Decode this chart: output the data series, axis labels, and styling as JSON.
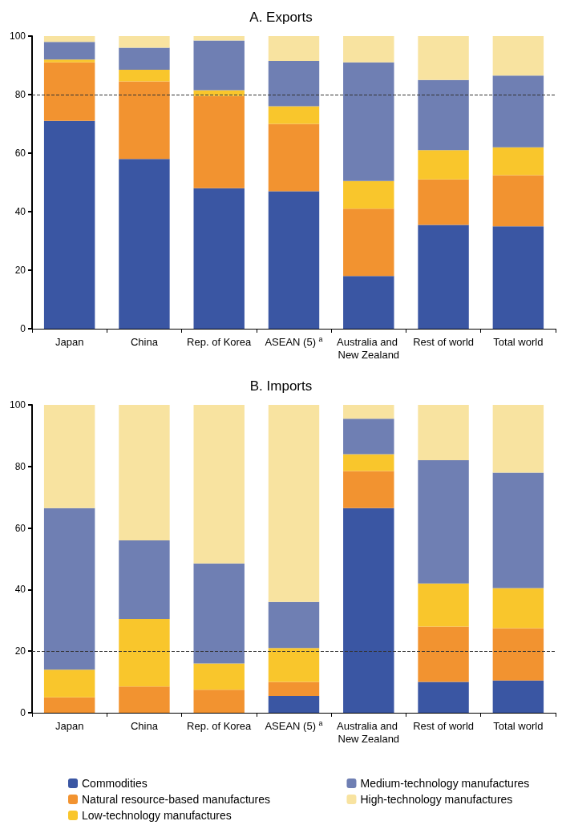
{
  "chart_data": [
    {
      "type": "bar",
      "title": "A. Exports",
      "stacked": true,
      "legend": false,
      "grid": false,
      "categories": [
        "Japan",
        "China",
        "Rep. of Korea",
        "ASEAN (5) $^{a}$",
        "Australia and New Zealand",
        "Rest of world",
        "Total world"
      ],
      "series": [
        {
          "color": "#3a56a3",
          "values": [
            71,
            58,
            48,
            47,
            18,
            35.5,
            35
          ]
        },
        {
          "color": "#f29330",
          "values": [
            20,
            26.5,
            31.5,
            23,
            23,
            15.5,
            17.5
          ]
        },
        {
          "color": "#f9c62c",
          "values": [
            1,
            4,
            2,
            6,
            9.5,
            10,
            9.5
          ]
        },
        {
          "color": "#6f7fb3",
          "values": [
            6,
            7.5,
            17,
            15.5,
            40.5,
            24,
            24.5
          ]
        },
        {
          "color": "#f8e3a0",
          "values": [
            2,
            4,
            1.5,
            8.5,
            9,
            15,
            13.5
          ]
        }
      ],
      "ylim": [
        0,
        100
      ],
      "yticks": [
        0,
        20,
        40,
        60,
        80,
        100
      ],
      "ref_lines": [
        {
          "axis": "y",
          "value": 80,
          "line_style": "dashed",
          "color": "#333333"
        }
      ]
    },
    {
      "type": "bar",
      "title": "B. Imports",
      "stacked": true,
      "legend": "bottom",
      "grid": false,
      "categories": [
        "Japan",
        "China",
        "Rep. of Korea",
        "ASEAN (5) $^{a}$",
        "Australia and New Zealand",
        "Rest of world",
        "Total world"
      ],
      "series": [
        {
          "name": "Commodities",
          "color": "#3a56a3",
          "values": [
            0,
            0,
            0,
            5.5,
            66.5,
            10,
            10.5
          ]
        },
        {
          "name": "Natural resource-based manufactures",
          "color": "#f29330",
          "values": [
            5,
            8.5,
            7.5,
            4.5,
            12,
            18,
            17
          ]
        },
        {
          "name": "Low-technology manufactures",
          "color": "#f9c62c",
          "values": [
            9,
            22,
            8.5,
            11,
            5.5,
            14,
            13
          ]
        },
        {
          "name": "Medium-technology manufactures",
          "color": "#6f7fb3",
          "values": [
            52.5,
            25.5,
            32.5,
            15,
            11.5,
            40,
            37.5
          ]
        },
        {
          "name": "High-technology manufactures",
          "color": "#f8e3a0",
          "values": [
            33.5,
            44,
            51.5,
            64,
            4.5,
            18,
            22
          ]
        }
      ],
      "ylim": [
        0,
        100
      ],
      "yticks": [
        0,
        20,
        40,
        60,
        80,
        100
      ],
      "ref_lines": [
        {
          "axis": "y",
          "value": 20,
          "line_style": "dashed",
          "color": "#333333"
        }
      ]
    }
  ]
}
